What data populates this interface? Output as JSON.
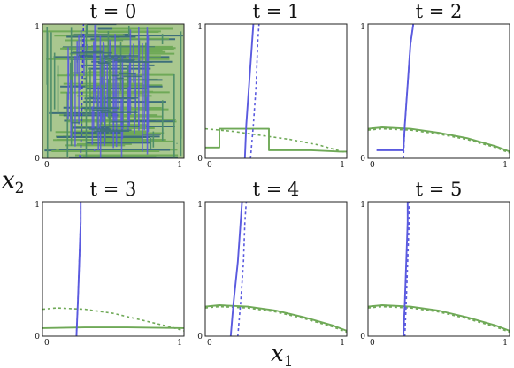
{
  "chart_data": {
    "type": "line",
    "xlabel": {
      "base": "x",
      "sub": "1"
    },
    "ylabel": {
      "base": "x",
      "sub": "2"
    },
    "panels": [
      {
        "title": "t = 0",
        "xlim": [
          0,
          1
        ],
        "ylim": [
          0,
          1
        ],
        "xticks": [
          "0",
          "1"
        ],
        "yticks": [
          "0",
          "1"
        ],
        "series": [
          {
            "style": "noise-green",
            "color": "#6fa957",
            "seed": 3
          },
          {
            "style": "noise-blue",
            "color": "#5a5adf",
            "seed": 7
          },
          {
            "style": "dotted",
            "color": "#3a3ad0",
            "x": [
              0.27,
              0.275,
              0.28,
              0.285,
              0.29
            ],
            "y": [
              0,
              0.25,
              0.5,
              0.75,
              1
            ]
          }
        ]
      },
      {
        "title": "t = 1",
        "xlim": [
          0,
          1
        ],
        "ylim": [
          0,
          1
        ],
        "xticks": [
          "0",
          "1"
        ],
        "yticks": [
          "0",
          "1"
        ],
        "series": [
          {
            "style": "solid",
            "color": "#6fa957",
            "x": [
              0,
              0.1,
              0.1,
              0.45,
              0.45,
              0.75,
              0.95,
              1
            ],
            "y": [
              0.08,
              0.08,
              0.22,
              0.22,
              0.06,
              0.06,
              0.05,
              0.05
            ]
          },
          {
            "style": "dotted",
            "color": "#6fa957",
            "x": [
              0,
              0.2,
              0.4,
              0.6,
              0.8,
              1
            ],
            "y": [
              0.22,
              0.2,
              0.17,
              0.14,
              0.1,
              0.04
            ]
          },
          {
            "style": "solid",
            "color": "#5a5adf",
            "x": [
              0.28,
              0.29,
              0.31,
              0.33,
              0.34
            ],
            "y": [
              0,
              0.25,
              0.55,
              0.85,
              1
            ]
          },
          {
            "style": "dotted",
            "color": "#5a5adf",
            "x": [
              0.32,
              0.34,
              0.36,
              0.37,
              0.38
            ],
            "y": [
              0,
              0.25,
              0.55,
              0.85,
              1
            ]
          }
        ]
      },
      {
        "title": "t = 2",
        "xlim": [
          0,
          1
        ],
        "ylim": [
          0,
          1
        ],
        "xticks": [
          "0",
          "1"
        ],
        "yticks": [
          "0",
          "1"
        ],
        "series": [
          {
            "style": "solid",
            "color": "#6fa957",
            "x": [
              0,
              0.1,
              0.3,
              0.5,
              0.7,
              0.9,
              1
            ],
            "y": [
              0.22,
              0.23,
              0.22,
              0.19,
              0.15,
              0.09,
              0.05
            ]
          },
          {
            "style": "dotted",
            "color": "#6fa957",
            "x": [
              0,
              0.1,
              0.3,
              0.5,
              0.7,
              0.9,
              1
            ],
            "y": [
              0.21,
              0.22,
              0.21,
              0.18,
              0.14,
              0.08,
              0.04
            ]
          },
          {
            "style": "solid",
            "color": "#5a5adf",
            "x": [
              0.06,
              0.25,
              0.26,
              0.28,
              0.3,
              0.32
            ],
            "y": [
              0.06,
              0.06,
              0.25,
              0.55,
              0.85,
              1
            ]
          },
          {
            "style": "dotted",
            "color": "#5a5adf",
            "x": [
              0.25,
              0.26,
              0.28,
              0.3,
              0.32
            ],
            "y": [
              0,
              0.25,
              0.55,
              0.85,
              1
            ]
          }
        ]
      },
      {
        "title": "t = 3",
        "xlim": [
          0,
          1
        ],
        "ylim": [
          0,
          1
        ],
        "xticks": [
          "0",
          "1"
        ],
        "yticks": [
          "0",
          "1"
        ],
        "series": [
          {
            "style": "solid",
            "color": "#6fa957",
            "x": [
              0,
              0.3,
              0.6,
              1
            ],
            "y": [
              0.06,
              0.065,
              0.065,
              0.06
            ]
          },
          {
            "style": "dotted",
            "color": "#6fa957",
            "x": [
              0,
              0.1,
              0.3,
              0.5,
              0.7,
              0.9,
              1
            ],
            "y": [
              0.2,
              0.21,
              0.2,
              0.17,
              0.12,
              0.07,
              0.04
            ]
          },
          {
            "style": "solid",
            "color": "#5a5adf",
            "x": [
              0.24,
              0.25,
              0.26,
              0.27,
              0.27
            ],
            "y": [
              0,
              0.25,
              0.55,
              0.85,
              1
            ]
          },
          {
            "style": "dotted",
            "color": "#5a5adf",
            "x": [
              0.24,
              0.25,
              0.26,
              0.27,
              0.27
            ],
            "y": [
              0,
              0.25,
              0.55,
              0.85,
              1
            ]
          }
        ]
      },
      {
        "title": "t = 4",
        "xlim": [
          0,
          1
        ],
        "ylim": [
          0,
          1
        ],
        "xticks": [
          "0",
          "1"
        ],
        "yticks": [
          "0",
          "1"
        ],
        "series": [
          {
            "style": "solid",
            "color": "#6fa957",
            "x": [
              0,
              0.1,
              0.3,
              0.5,
              0.7,
              0.9,
              1
            ],
            "y": [
              0.22,
              0.23,
              0.22,
              0.19,
              0.14,
              0.08,
              0.04
            ]
          },
          {
            "style": "dotted",
            "color": "#6fa957",
            "x": [
              0,
              0.1,
              0.3,
              0.5,
              0.7,
              0.9,
              1
            ],
            "y": [
              0.21,
              0.22,
              0.21,
              0.18,
              0.13,
              0.07,
              0.03
            ]
          },
          {
            "style": "solid",
            "color": "#5a5adf",
            "x": [
              0.18,
              0.2,
              0.23,
              0.25,
              0.26
            ],
            "y": [
              0,
              0.25,
              0.55,
              0.85,
              1
            ]
          },
          {
            "style": "dotted",
            "color": "#5a5adf",
            "x": [
              0.23,
              0.25,
              0.27,
              0.28,
              0.29
            ],
            "y": [
              0,
              0.25,
              0.55,
              0.85,
              1
            ]
          }
        ]
      },
      {
        "title": "t = 5",
        "xlim": [
          0,
          1
        ],
        "ylim": [
          0,
          1
        ],
        "xticks": [
          "0",
          "1"
        ],
        "yticks": [
          "0",
          "1"
        ],
        "series": [
          {
            "style": "solid",
            "color": "#6fa957",
            "x": [
              0,
              0.1,
              0.3,
              0.5,
              0.7,
              0.9,
              1
            ],
            "y": [
              0.22,
              0.23,
              0.22,
              0.19,
              0.14,
              0.08,
              0.04
            ]
          },
          {
            "style": "dotted",
            "color": "#6fa957",
            "x": [
              0,
              0.1,
              0.3,
              0.5,
              0.7,
              0.9,
              1
            ],
            "y": [
              0.21,
              0.22,
              0.21,
              0.18,
              0.13,
              0.07,
              0.03
            ]
          },
          {
            "style": "solid",
            "color": "#5a5adf",
            "x": [
              0.25,
              0.26,
              0.27,
              0.28,
              0.28
            ],
            "y": [
              0,
              0.25,
              0.55,
              0.85,
              1
            ]
          },
          {
            "style": "dotted",
            "color": "#5a5adf",
            "x": [
              0.26,
              0.27,
              0.28,
              0.29,
              0.29
            ],
            "y": [
              0,
              0.25,
              0.55,
              0.85,
              1
            ]
          }
        ]
      }
    ]
  }
}
